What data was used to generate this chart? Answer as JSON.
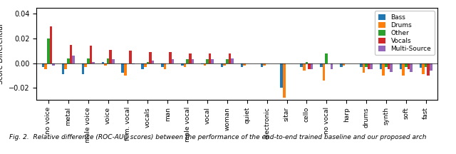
{
  "categories": [
    "no voice",
    "metal",
    "male voice",
    "voice",
    "fem. vocal",
    "vocals",
    "man",
    "male vocal",
    "vocal",
    "woman",
    "quiet",
    "electronic",
    "sitar",
    "cello",
    "no vocal",
    "harp",
    "drums",
    "synth",
    "soft",
    "fast"
  ],
  "series": {
    "Bass": [
      -0.003,
      -0.009,
      -0.009,
      0.001,
      -0.008,
      -0.005,
      -0.003,
      -0.002,
      -0.001,
      -0.003,
      -0.003,
      -0.003,
      -0.02,
      -0.003,
      -0.003,
      -0.003,
      -0.003,
      -0.005,
      -0.005,
      -0.004
    ],
    "Drums": [
      -0.005,
      -0.005,
      -0.003,
      -0.002,
      -0.01,
      -0.003,
      -0.005,
      -0.003,
      -0.002,
      -0.002,
      -0.002,
      -0.002,
      -0.028,
      -0.006,
      -0.014,
      -0.002,
      -0.008,
      -0.01,
      -0.01,
      -0.009
    ],
    "Other": [
      0.02,
      0.004,
      0.004,
      0.004,
      0.0,
      0.001,
      0.0,
      0.003,
      0.003,
      0.003,
      0.0,
      0.0,
      0.0,
      0.001,
      0.008,
      0.0,
      -0.003,
      -0.003,
      -0.003,
      -0.003
    ],
    "Vocals": [
      0.03,
      0.015,
      0.014,
      0.011,
      0.01,
      0.009,
      0.009,
      0.008,
      0.008,
      0.008,
      0.0,
      0.0,
      0.0,
      -0.005,
      0.0,
      0.0,
      -0.005,
      -0.005,
      -0.005,
      -0.01
    ],
    "Multi-Source": [
      -0.002,
      0.006,
      0.001,
      0.003,
      -0.001,
      0.002,
      0.003,
      0.003,
      0.003,
      0.004,
      0.0,
      0.0,
      0.0,
      -0.005,
      -0.005,
      0.0,
      -0.005,
      -0.007,
      -0.007,
      -0.006
    ]
  },
  "colors": {
    "Bass": "#1f77b4",
    "Drums": "#ff7f0e",
    "Other": "#2ca02c",
    "Vocals": "#d62728",
    "Multi-Source": "#9467bd"
  },
  "ylabel": "Score Differential",
  "ylim": [
    -0.03,
    0.045
  ],
  "yticks": [
    -0.02,
    0.0,
    0.02,
    0.04
  ],
  "bar_width": 0.13,
  "figsize": [
    6.4,
    2.16
  ],
  "dpi": 100,
  "caption": "Fig. 2.  Relative difference (ROC-AUC scores) between the performance of the end-to-end trained baseline and our proposed arch"
}
